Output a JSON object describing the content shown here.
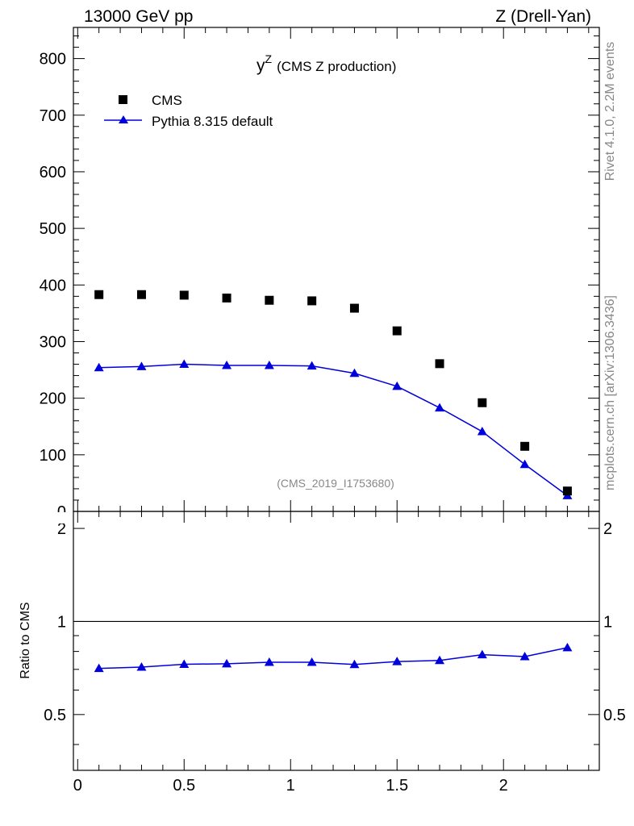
{
  "header": {
    "left": "13000 GeV pp",
    "right": "Z (Drell-Yan)"
  },
  "side_text": {
    "rivet": "Rivet 4.1.0,  2.2M events",
    "mcplots": "mcplots.cern.ch [arXiv:1306.3436]"
  },
  "colors": {
    "data": "#000000",
    "mc": "#0000dd",
    "watermark": "#888888"
  },
  "chart_data": {
    "type": "scatter",
    "title_main": "y",
    "title_sup": "Z",
    "title_rest": "(CMS Z production)",
    "watermark": "(CMS_2019_I1753680)",
    "x": [
      0.1,
      0.3,
      0.5,
      0.7,
      0.9,
      1.1,
      1.3,
      1.5,
      1.7,
      1.9,
      2.1,
      2.3
    ],
    "xlim": [
      -0.02,
      2.45
    ],
    "xticks": [
      0,
      0.5,
      1,
      1.5,
      2
    ],
    "xtick_labels": [
      "0",
      "0.5",
      "1",
      "1.5",
      "2"
    ],
    "upper": {
      "ylim": [
        0,
        855
      ],
      "yticks": [
        0,
        100,
        200,
        300,
        400,
        500,
        600,
        700,
        800
      ],
      "ytick_labels": [
        "0",
        "100",
        "200",
        "300",
        "400",
        "500",
        "600",
        "700",
        "800"
      ],
      "series": [
        {
          "name": "CMS",
          "style": "marker-square",
          "values": [
            383,
            383,
            382,
            377,
            373,
            372,
            359,
            319,
            261,
            192,
            115,
            36
          ]
        },
        {
          "name": "Pythia 8.315 default",
          "style": "line-triangle",
          "values": [
            254,
            256,
            260,
            258,
            258,
            257,
            244,
            221,
            183,
            141,
            83,
            28
          ]
        }
      ]
    },
    "ratio": {
      "ylabel": "Ratio to CMS",
      "ylim": [
        0.33,
        2.27
      ],
      "reference": 1,
      "yticks": [
        0.5,
        1,
        2
      ],
      "ytick_labels": [
        "0.5",
        "1",
        "2"
      ],
      "values": [
        0.705,
        0.712,
        0.727,
        0.73,
        0.738,
        0.738,
        0.726,
        0.742,
        0.748,
        0.781,
        0.77,
        0.823
      ],
      "errors": [
        0,
        0,
        0,
        0,
        0,
        0,
        0,
        0,
        0,
        0,
        0,
        0.02
      ]
    }
  }
}
